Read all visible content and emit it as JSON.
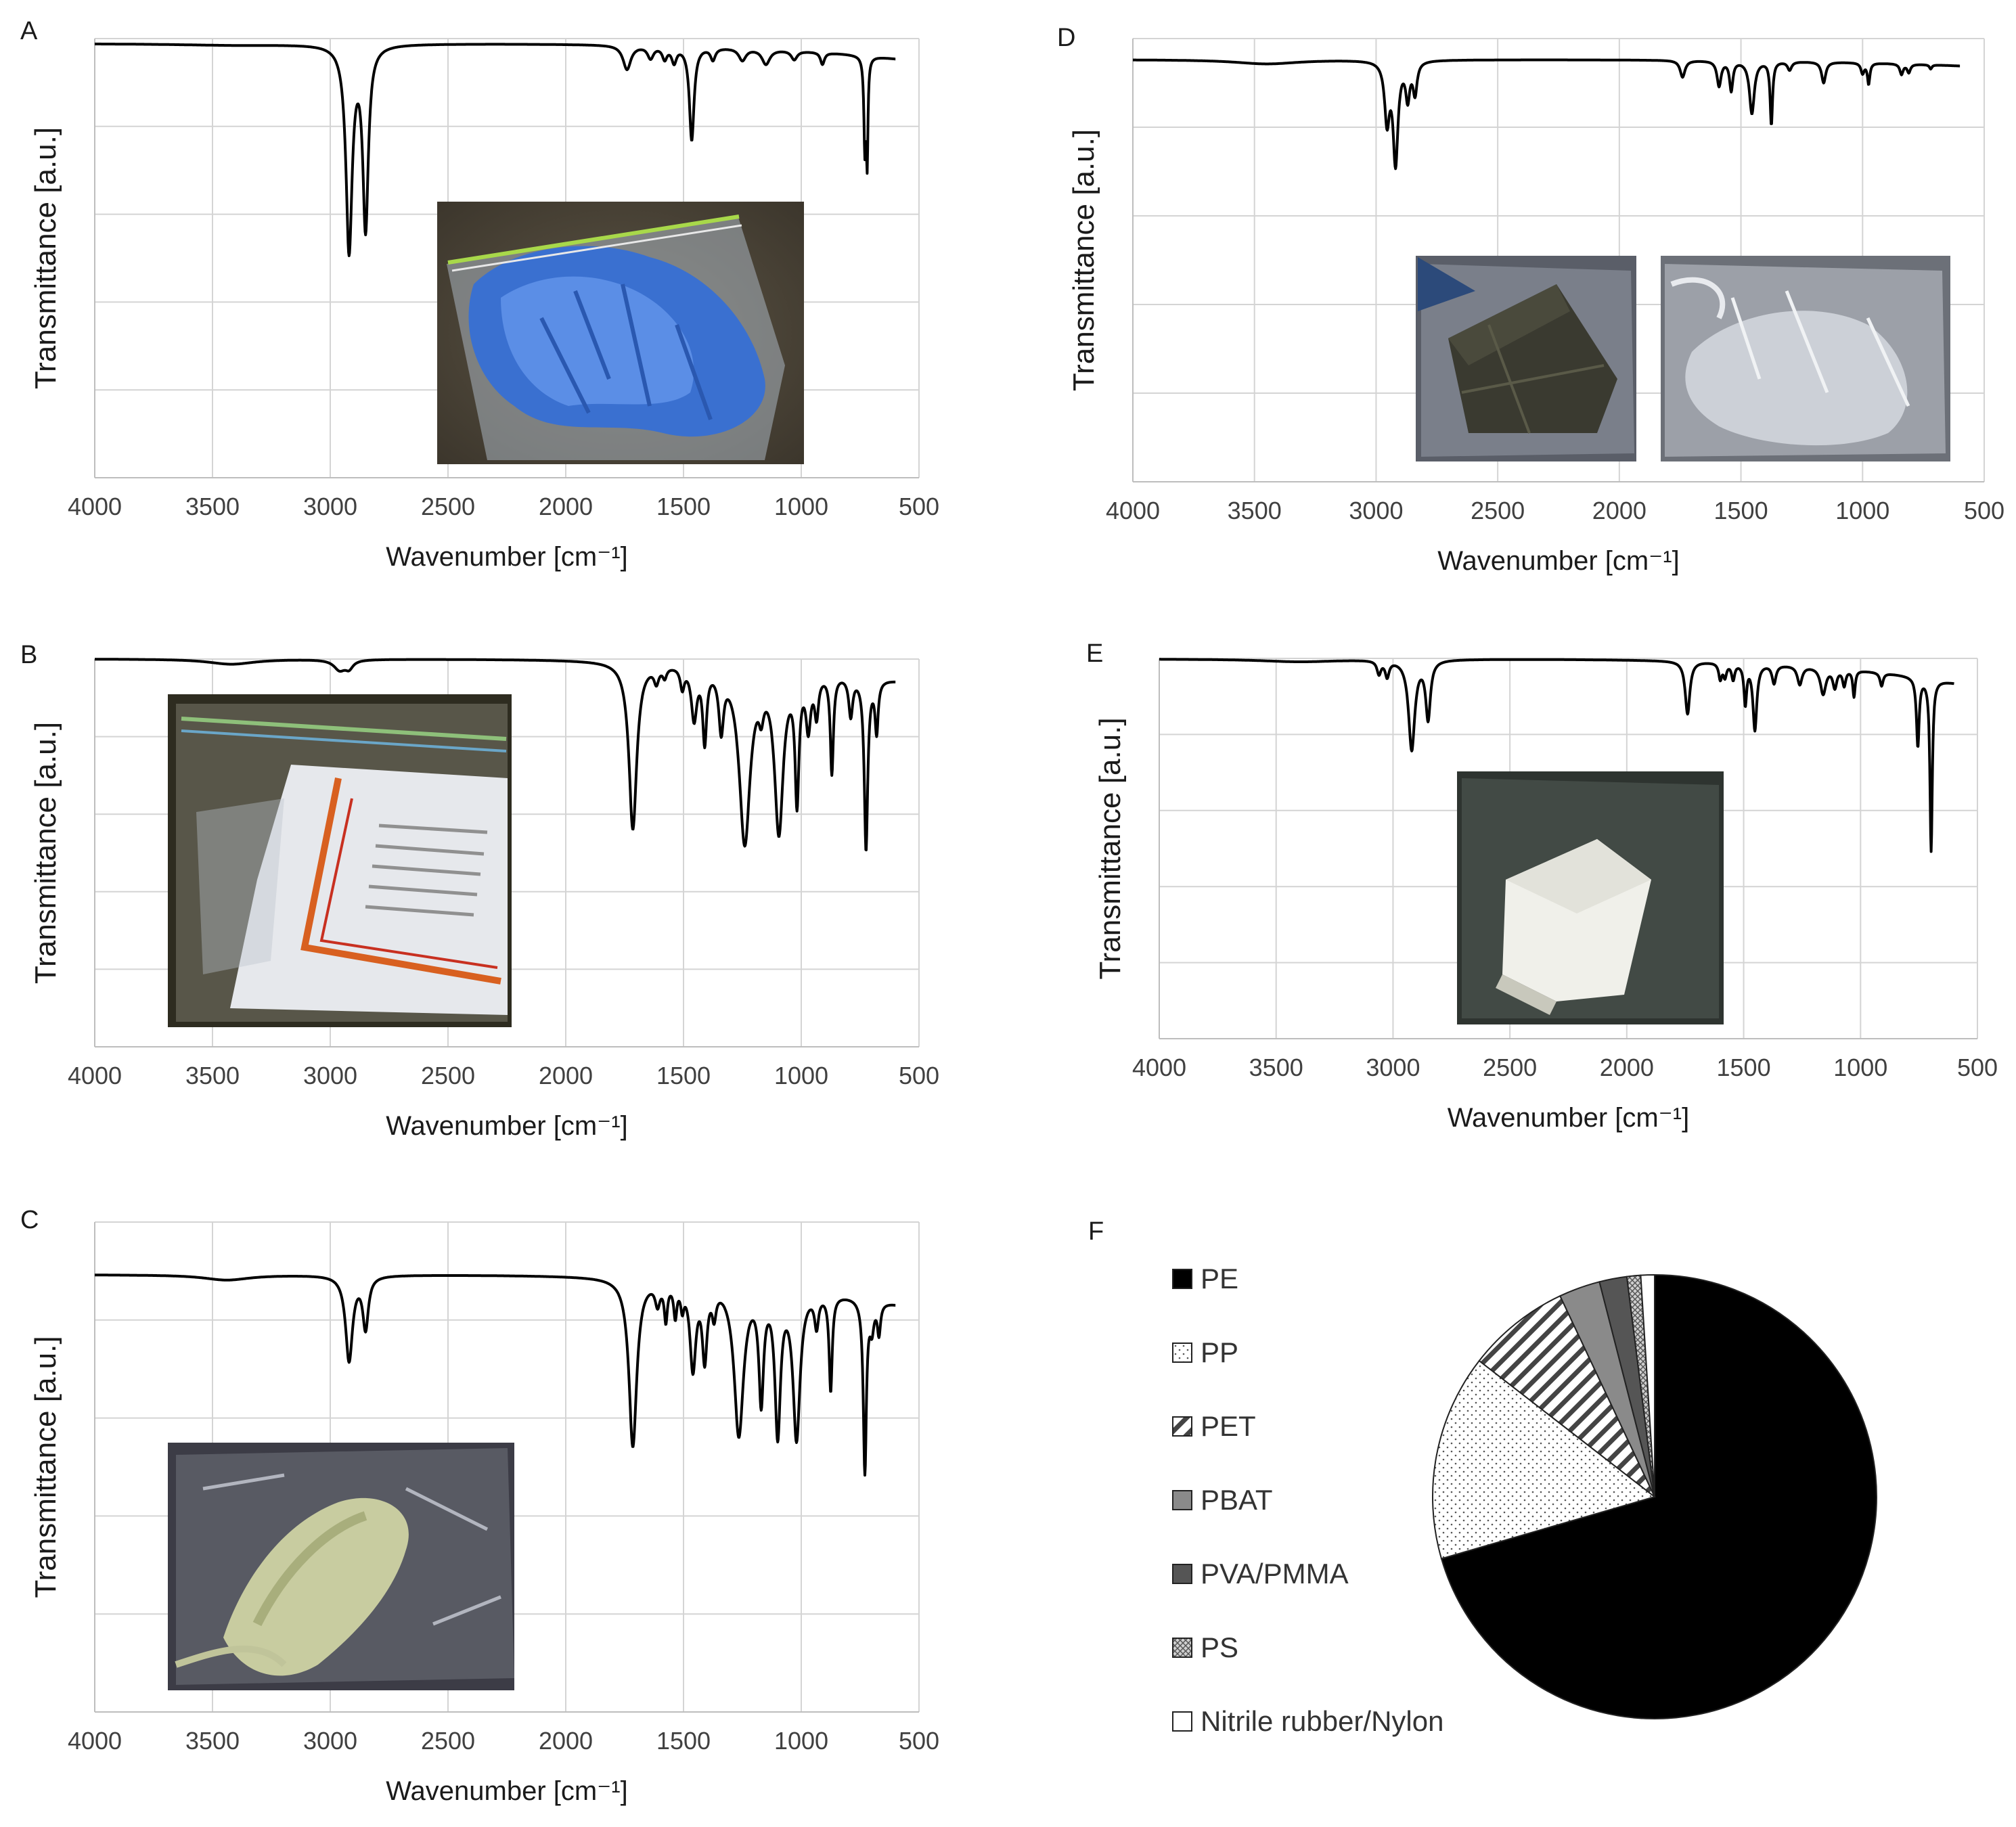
{
  "colors": {
    "spectrum": "#000000",
    "grid": "#d4d4d4",
    "tick_text": "#404040",
    "label_text": "#1a1a1a",
    "pie_edge": "#222222"
  },
  "panel_labels": [
    "A",
    "B",
    "C",
    "D",
    "E",
    "F"
  ],
  "chart_data": [
    {
      "panel": "A",
      "type": "line",
      "xlabel": "Wavenumber",
      "xlabel_unit": "[cm⁻¹]",
      "ylabel": "Transmittance [a.u.]",
      "xlim": [
        4000,
        500
      ],
      "x_reversed": true,
      "x_ticks": [
        4000,
        3500,
        3000,
        2500,
        2000,
        1500,
        1000,
        500
      ],
      "ylim": [
        0,
        1
      ],
      "grid": true,
      "inset_photo": "blue-gloves-in-bag-photo",
      "series": [
        {
          "baseline": 0.99,
          "end": [
            600,
            0.94
          ],
          "peaks": [
            [
              3400,
              0.005,
              300
            ],
            [
              2920,
              0.68,
              16
            ],
            [
              2850,
              0.6,
              14
            ],
            [
              1740,
              0.08,
              20
            ],
            [
              1640,
              0.04,
              15
            ],
            [
              1580,
              0.04,
              12
            ],
            [
              1540,
              0.05,
              12
            ],
            [
              1465,
              0.31,
              12
            ],
            [
              1375,
              0.04,
              12
            ],
            [
              1250,
              0.04,
              18
            ],
            [
              1150,
              0.05,
              20
            ],
            [
              1030,
              0.03,
              15
            ],
            [
              910,
              0.04,
              10
            ],
            [
              730,
              0.3,
              5
            ],
            [
              720,
              0.33,
              4
            ]
          ]
        }
      ]
    },
    {
      "panel": "B",
      "type": "line",
      "xlabel": "Wavenumber",
      "xlabel_unit": "[cm⁻¹]",
      "ylabel": "Transmittance [a.u.]",
      "xlim": [
        4000,
        500
      ],
      "x_reversed": true,
      "x_ticks": [
        4000,
        3500,
        3000,
        2500,
        2000,
        1500,
        1000,
        500
      ],
      "ylim": [
        0,
        1
      ],
      "grid": true,
      "inset_photo": "printed-plastic-sheet-in-bag-photo",
      "series": [
        {
          "baseline": 0.99,
          "end": [
            600,
            0.91
          ],
          "peaks": [
            [
              3420,
              0.02,
              120
            ],
            [
              2960,
              0.04,
              30
            ],
            [
              2920,
              0.03,
              20
            ],
            [
              1715,
              0.65,
              20
            ],
            [
              1615,
              0.06,
              12
            ],
            [
              1580,
              0.04,
              10
            ],
            [
              1505,
              0.08,
              10
            ],
            [
              1455,
              0.2,
              14
            ],
            [
              1410,
              0.28,
              10
            ],
            [
              1340,
              0.22,
              12
            ],
            [
              1240,
              0.68,
              28
            ],
            [
              1170,
              0.1,
              12
            ],
            [
              1095,
              0.62,
              22
            ],
            [
              1018,
              0.48,
              10
            ],
            [
              970,
              0.2,
              12
            ],
            [
              935,
              0.15,
              10
            ],
            [
              870,
              0.38,
              8
            ],
            [
              790,
              0.15,
              10
            ],
            [
              725,
              0.67,
              9
            ],
            [
              680,
              0.2,
              8
            ]
          ]
        }
      ]
    },
    {
      "panel": "C",
      "type": "line",
      "xlabel": "Wavenumber",
      "xlabel_unit": "[cm⁻¹]",
      "ylabel": "Transmittance [a.u.]",
      "xlim": [
        4000,
        500
      ],
      "x_reversed": true,
      "x_ticks": [
        4000,
        3500,
        3000,
        2500,
        2000,
        1500,
        1000,
        500
      ],
      "ylim": [
        0,
        1
      ],
      "grid": true,
      "inset_photo": "green-plastic-film-in-bag-photo",
      "series": [
        {
          "baseline": 0.99,
          "end": [
            600,
            0.88
          ],
          "peaks": [
            [
              3440,
              0.02,
              120
            ],
            [
              2920,
              0.33,
              18
            ],
            [
              2850,
              0.2,
              14
            ],
            [
              1715,
              0.65,
              20
            ],
            [
              1610,
              0.08,
              12
            ],
            [
              1575,
              0.14,
              8
            ],
            [
              1535,
              0.12,
              8
            ],
            [
              1505,
              0.08,
              8
            ],
            [
              1460,
              0.33,
              15
            ],
            [
              1410,
              0.28,
              12
            ],
            [
              1370,
              0.1,
              10
            ],
            [
              1265,
              0.58,
              24
            ],
            [
              1170,
              0.42,
              12
            ],
            [
              1100,
              0.55,
              14
            ],
            [
              1020,
              0.57,
              18
            ],
            [
              935,
              0.12,
              10
            ],
            [
              875,
              0.37,
              8
            ],
            [
              730,
              0.67,
              8
            ],
            [
              700,
              0.1,
              10
            ],
            [
              670,
              0.12,
              8
            ]
          ]
        }
      ]
    },
    {
      "panel": "D",
      "type": "line",
      "xlabel": "Wavenumber",
      "xlabel_unit": "[cm⁻¹]",
      "ylabel": "Transmittance [a.u.]",
      "xlim": [
        4000,
        500
      ],
      "x_reversed": true,
      "x_ticks": [
        4000,
        3500,
        3000,
        2500,
        2000,
        1500,
        1000,
        500
      ],
      "ylim": [
        0,
        1
      ],
      "grid": true,
      "inset_photo": [
        "dark-fragment-in-bag-photo",
        "clear-film-in-bag-photo"
      ],
      "series": [
        {
          "baseline": 0.99,
          "end": [
            600,
            0.96
          ],
          "peaks": [
            [
              3450,
              0.02,
              160
            ],
            [
              2955,
              0.28,
              12
            ],
            [
              2920,
              0.48,
              12
            ],
            [
              2870,
              0.17,
              10
            ],
            [
              2840,
              0.15,
              10
            ],
            [
              1740,
              0.08,
              12
            ],
            [
              1590,
              0.12,
              10
            ],
            [
              1540,
              0.14,
              8
            ],
            [
              1455,
              0.25,
              12
            ],
            [
              1375,
              0.3,
              6
            ],
            [
              1300,
              0.04,
              10
            ],
            [
              1160,
              0.1,
              10
            ],
            [
              1000,
              0.05,
              8
            ],
            [
              975,
              0.1,
              6
            ],
            [
              840,
              0.05,
              8
            ],
            [
              810,
              0.04,
              8
            ],
            [
              720,
              0.02,
              6
            ]
          ]
        }
      ]
    },
    {
      "panel": "E",
      "type": "line",
      "xlabel": "Wavenumber",
      "xlabel_unit": "[cm⁻¹]",
      "ylabel": "Transmittance [a.u.]",
      "xlim": [
        4000,
        500
      ],
      "x_reversed": true,
      "x_ticks": [
        4000,
        3500,
        3000,
        2500,
        2000,
        1500,
        1000,
        500
      ],
      "ylim": [
        0,
        1
      ],
      "grid": true,
      "inset_photo": "white-plastic-piece-photo",
      "series": [
        {
          "baseline": 0.99,
          "end": [
            600,
            0.9
          ],
          "peaks": [
            [
              3400,
              0.01,
              200
            ],
            [
              3060,
              0.05,
              10
            ],
            [
              3025,
              0.06,
              10
            ],
            [
              2920,
              0.34,
              16
            ],
            [
              2850,
              0.22,
              12
            ],
            [
              1740,
              0.2,
              12
            ],
            [
              1600,
              0.06,
              8
            ],
            [
              1580,
              0.05,
              8
            ],
            [
              1545,
              0.06,
              8
            ],
            [
              1493,
              0.15,
              7
            ],
            [
              1452,
              0.25,
              10
            ],
            [
              1370,
              0.07,
              10
            ],
            [
              1260,
              0.07,
              12
            ],
            [
              1160,
              0.1,
              14
            ],
            [
              1110,
              0.07,
              10
            ],
            [
              1070,
              0.06,
              8
            ],
            [
              1028,
              0.1,
              6
            ],
            [
              910,
              0.05,
              8
            ],
            [
              755,
              0.26,
              7
            ],
            [
              698,
              0.65,
              6
            ]
          ]
        }
      ]
    },
    {
      "panel": "F",
      "type": "pie",
      "legend_position": "left",
      "slices": [
        {
          "label": "PE",
          "value": 70.5,
          "pattern": "solid-black"
        },
        {
          "label": "PP",
          "value": 15.0,
          "pattern": "dots"
        },
        {
          "label": "PET",
          "value": 7.5,
          "pattern": "diagonal-hatch"
        },
        {
          "label": "PBAT",
          "value": 3.0,
          "pattern": "gray"
        },
        {
          "label": "PVA/PMMA",
          "value": 2.0,
          "pattern": "dark-gray"
        },
        {
          "label": "PS",
          "value": 1.0,
          "pattern": "crosshatch"
        },
        {
          "label": "Nitrile rubber/Nylon",
          "value": 1.0,
          "pattern": "white"
        }
      ]
    }
  ]
}
